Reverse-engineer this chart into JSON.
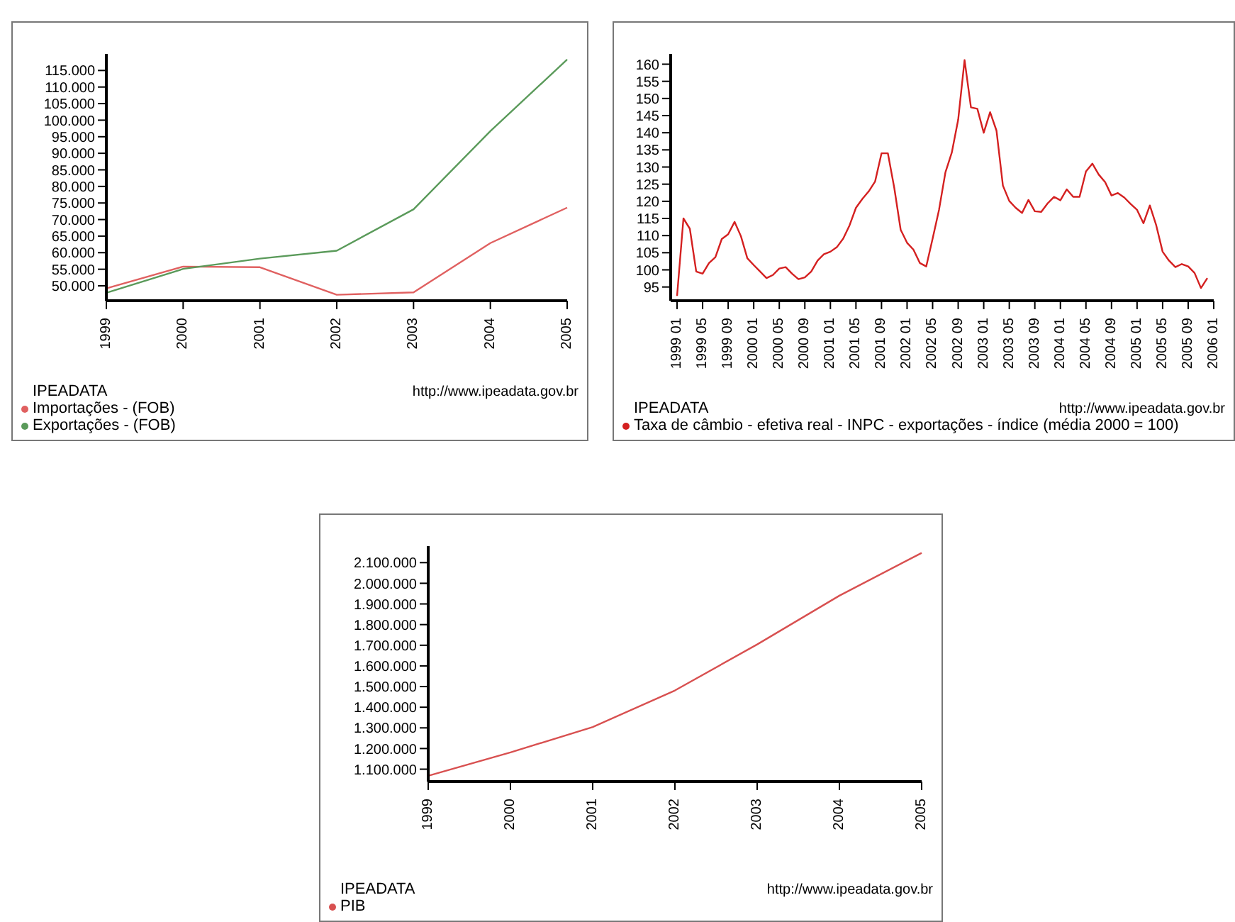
{
  "chart_data": [
    {
      "type": "line",
      "categories": [
        "1999",
        "2000",
        "2001",
        "2002",
        "2003",
        "2004",
        "2005"
      ],
      "legend_title": "IPEADATA",
      "legend": "bottom left",
      "annotations": [
        "http://www.ipeadata.gov.br"
      ],
      "ylim": [
        45500,
        120000
      ],
      "yticks": [
        {
          "value": 50000,
          "label": "50.000"
        },
        {
          "value": 55000,
          "label": "55.000"
        },
        {
          "value": 60000,
          "label": "60.000"
        },
        {
          "value": 65000,
          "label": "65.000"
        },
        {
          "value": 70000,
          "label": "70.000"
        },
        {
          "value": 75000,
          "label": "75.000"
        },
        {
          "value": 80000,
          "label": "80.000"
        },
        {
          "value": 85000,
          "label": "85.000"
        },
        {
          "value": 90000,
          "label": "90.000"
        },
        {
          "value": 95000,
          "label": "95.000"
        },
        {
          "value": 100000,
          "label": "100.000"
        },
        {
          "value": 105000,
          "label": "105.000"
        },
        {
          "value": 110000,
          "label": "110.000"
        },
        {
          "value": 115000,
          "label": "115.000"
        }
      ],
      "grid": false,
      "marker": "none",
      "line_style": "solid",
      "series": [
        {
          "name": "Importações - (FOB)",
          "color": "#e06060",
          "values": [
            49200,
            55800,
            55600,
            47300,
            48000,
            62900,
            73600
          ]
        },
        {
          "name": "Exportações - (FOB)",
          "color": "#5a9a5a",
          "values": [
            47900,
            55100,
            58200,
            60600,
            73100,
            96700,
            118300
          ]
        }
      ]
    },
    {
      "type": "line",
      "x": [
        "1999-01",
        "1999-02",
        "1999-03",
        "1999-04",
        "1999-05",
        "1999-06",
        "1999-07",
        "1999-08",
        "1999-09",
        "1999-10",
        "1999-11",
        "1999-12",
        "2000-01",
        "2000-02",
        "2000-03",
        "2000-04",
        "2000-05",
        "2000-06",
        "2000-07",
        "2000-08",
        "2000-09",
        "2000-10",
        "2000-11",
        "2000-12",
        "2001-01",
        "2001-02",
        "2001-03",
        "2001-04",
        "2001-05",
        "2001-06",
        "2001-07",
        "2001-08",
        "2001-09",
        "2001-10",
        "2001-11",
        "2001-12",
        "2002-01",
        "2002-02",
        "2002-03",
        "2002-04",
        "2002-05",
        "2002-06",
        "2002-07",
        "2002-08",
        "2002-09",
        "2002-10",
        "2002-11",
        "2002-12",
        "2003-01",
        "2003-02",
        "2003-03",
        "2003-04",
        "2003-05",
        "2003-06",
        "2003-07",
        "2003-08",
        "2003-09",
        "2003-10",
        "2003-11",
        "2003-12",
        "2004-01",
        "2004-02",
        "2004-03",
        "2004-04",
        "2004-05",
        "2004-06",
        "2004-07",
        "2004-08",
        "2004-09",
        "2004-10",
        "2004-11",
        "2004-12",
        "2005-01",
        "2005-02",
        "2005-03",
        "2005-04",
        "2005-05",
        "2005-06",
        "2005-07",
        "2005-08",
        "2005-09",
        "2005-10",
        "2005-11",
        "2005-12"
      ],
      "legend_title": "IPEADATA",
      "legend": "bottom left",
      "annotations": [
        "http://www.ipeadata.gov.br"
      ],
      "xlim": [
        "1998-12",
        "2006-01"
      ],
      "xticks": [
        {
          "value": "1999-01",
          "label": "1999 01"
        },
        {
          "value": "1999-05",
          "label": "1999 05"
        },
        {
          "value": "1999-09",
          "label": "1999 09"
        },
        {
          "value": "2000-01",
          "label": "2000 01"
        },
        {
          "value": "2000-05",
          "label": "2000 05"
        },
        {
          "value": "2000-09",
          "label": "2000 09"
        },
        {
          "value": "2001-01",
          "label": "2001 01"
        },
        {
          "value": "2001-05",
          "label": "2001 05"
        },
        {
          "value": "2001-09",
          "label": "2001 09"
        },
        {
          "value": "2002-01",
          "label": "2002 01"
        },
        {
          "value": "2002-05",
          "label": "2002 05"
        },
        {
          "value": "2002-09",
          "label": "2002 09"
        },
        {
          "value": "2003-01",
          "label": "2003 01"
        },
        {
          "value": "2003-05",
          "label": "2003 05"
        },
        {
          "value": "2003-09",
          "label": "2003 09"
        },
        {
          "value": "2004-01",
          "label": "2004 01"
        },
        {
          "value": "2004-05",
          "label": "2004 05"
        },
        {
          "value": "2004-09",
          "label": "2004 09"
        },
        {
          "value": "2005-01",
          "label": "2005 01"
        },
        {
          "value": "2005-05",
          "label": "2005 05"
        },
        {
          "value": "2005-09",
          "label": "2005 09"
        },
        {
          "value": "2006-01",
          "label": "2006 01"
        }
      ],
      "ylim": [
        91,
        163
      ],
      "yticks": [
        95,
        100,
        105,
        110,
        115,
        120,
        125,
        130,
        135,
        140,
        145,
        150,
        155,
        160
      ],
      "grid": false,
      "marker": "none",
      "line_style": "solid",
      "series": [
        {
          "name": "Taxa de câmbio - efetiva real - INPC - exportações - índice (média 2000 = 100)",
          "color": "#d42020",
          "values": [
            92.4,
            115,
            112,
            99.5,
            98.9,
            102,
            103.7,
            109,
            110.4,
            114,
            109.8,
            103.4,
            101.4,
            99.5,
            97.6,
            98.5,
            100.4,
            100.8,
            98.9,
            97.3,
            97.8,
            99.5,
            102.7,
            104.6,
            105.3,
            106.6,
            109.1,
            113,
            118.1,
            120.7,
            122.9,
            125.8,
            134,
            134,
            123.9,
            111.7,
            107.9,
            105.9,
            102,
            101,
            109.1,
            117.5,
            128.4,
            134.2,
            143.8,
            161.2,
            147.4,
            147,
            140,
            146,
            140.6,
            124.6,
            120.1,
            118.1,
            116.6,
            120.4,
            117.1,
            116.9,
            119.4,
            121.3,
            120.3,
            123.5,
            121.3,
            121.3,
            128.7,
            131,
            127.8,
            125.6,
            121.7,
            122.4,
            121.1,
            119.2,
            117.5,
            113.6,
            118.8,
            113,
            105.3,
            102.7,
            100.8,
            101.7,
            101,
            99.1,
            94.7,
            97.6
          ]
        }
      ]
    },
    {
      "type": "line",
      "categories": [
        "1999",
        "2000",
        "2001",
        "2002",
        "2003",
        "2004",
        "2005"
      ],
      "legend_title": "IPEADATA",
      "legend": "bottom left",
      "annotations": [
        "http://www.ipeadata.gov.br"
      ],
      "ylim": [
        1040000,
        2180000
      ],
      "yticks": [
        {
          "value": 1100000,
          "label": "1.100.000"
        },
        {
          "value": 1200000,
          "label": "1.200.000"
        },
        {
          "value": 1300000,
          "label": "1.300.000"
        },
        {
          "value": 1400000,
          "label": "1.400.000"
        },
        {
          "value": 1500000,
          "label": "1.500.000"
        },
        {
          "value": 1600000,
          "label": "1.600.000"
        },
        {
          "value": 1700000,
          "label": "1.700.000"
        },
        {
          "value": 1800000,
          "label": "1.800.000"
        },
        {
          "value": 1900000,
          "label": "1.900.000"
        },
        {
          "value": 2000000,
          "label": "2.000.000"
        },
        {
          "value": 2100000,
          "label": "2.100.000"
        }
      ],
      "grid": false,
      "marker": "none",
      "line_style": "solid",
      "series": [
        {
          "name": "PIB",
          "color": "#d85050",
          "values": [
            1068000,
            1181000,
            1304000,
            1481000,
            1704000,
            1940000,
            2147000
          ]
        }
      ]
    }
  ]
}
